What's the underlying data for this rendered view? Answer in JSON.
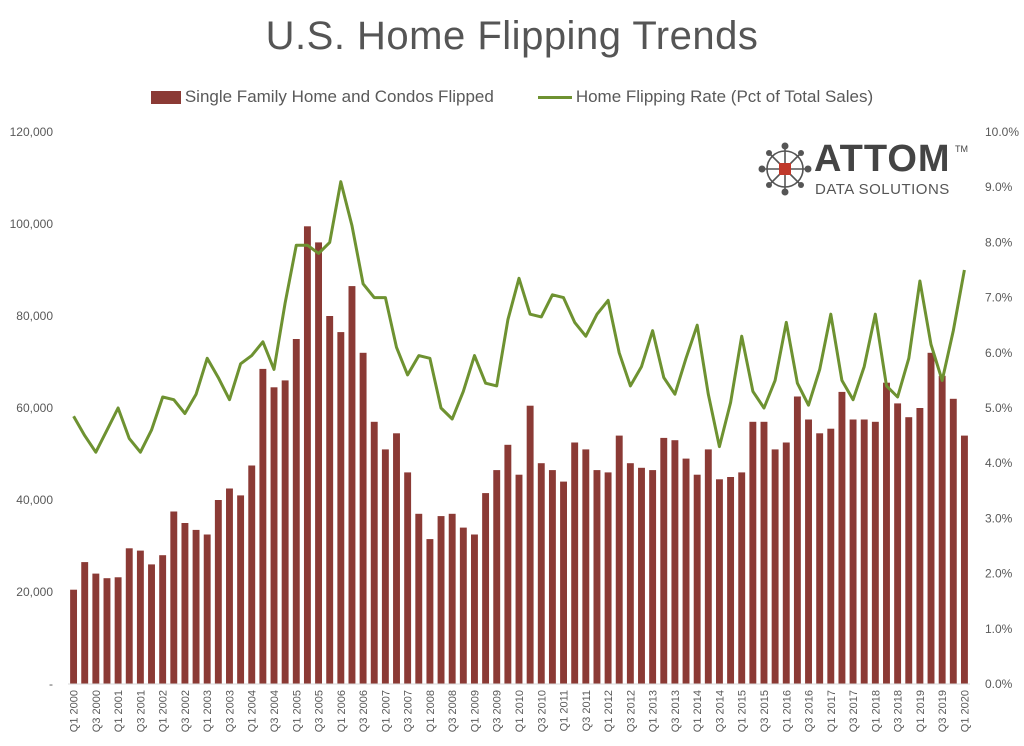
{
  "title": "U.S. Home Flipping Trends",
  "legend": {
    "bars_label": "Single Family Home and Condos Flipped",
    "line_label": "Home Flipping Rate (Pct of Total Sales)"
  },
  "logo": {
    "word": "ATTOM",
    "tm": "TM",
    "sub": "DATA SOLUTIONS"
  },
  "colors": {
    "bars": "#8B3A35",
    "line": "#6E9231",
    "axis_text": "#595959"
  },
  "chart_data": {
    "type": "bar",
    "categories": [
      "Q1 2000",
      "Q2 2000",
      "Q3 2000",
      "Q4 2000",
      "Q1 2001",
      "Q2 2001",
      "Q3 2001",
      "Q4 2001",
      "Q1 2002",
      "Q2 2002",
      "Q3 2002",
      "Q4 2002",
      "Q1 2003",
      "Q2 2003",
      "Q3 2003",
      "Q4 2003",
      "Q1 2004",
      "Q2 2004",
      "Q3 2004",
      "Q4 2004",
      "Q1 2005",
      "Q2 2005",
      "Q3 2005",
      "Q4 2005",
      "Q1 2006",
      "Q2 2006",
      "Q3 2006",
      "Q4 2006",
      "Q1 2007",
      "Q2 2007",
      "Q3 2007",
      "Q4 2007",
      "Q1 2008",
      "Q2 2008",
      "Q3 2008",
      "Q4 2008",
      "Q1 2009",
      "Q2 2009",
      "Q3 2009",
      "Q4 2009",
      "Q1 2010",
      "Q2 2010",
      "Q3 2010",
      "Q4 2010",
      "Q1 2011",
      "Q2 2011",
      "Q3 2011",
      "Q4 2011",
      "Q1 2012",
      "Q2 2012",
      "Q3 2012",
      "Q4 2012",
      "Q1 2013",
      "Q2 2013",
      "Q3 2013",
      "Q4 2013",
      "Q1 2014",
      "Q2 2014",
      "Q3 2014",
      "Q4 2014",
      "Q1 2015",
      "Q2 2015",
      "Q3 2015",
      "Q4 2015",
      "Q1 2016",
      "Q2 2016",
      "Q3 2016",
      "Q4 2016",
      "Q1 2017",
      "Q2 2017",
      "Q3 2017",
      "Q4 2017",
      "Q1 2018",
      "Q2 2018",
      "Q3 2018",
      "Q4 2018",
      "Q1 2019",
      "Q2 2019",
      "Q3 2019",
      "Q4 2019",
      "Q1 2020"
    ],
    "x_tick_labels": [
      "Q1 2000",
      "Q3 2000",
      "Q1 2001",
      "Q3 2001",
      "Q1 2002",
      "Q3 2002",
      "Q1 2003",
      "Q3 2003",
      "Q1 2004",
      "Q3 2004",
      "Q1 2005",
      "Q3 2005",
      "Q1 2006",
      "Q3 2006",
      "Q1 2007",
      "Q3 2007",
      "Q1 2008",
      "Q3 2008",
      "Q1 2009",
      "Q3 2009",
      "Q1 2010",
      "Q3 2010",
      "Q1 2011",
      "Q3 2011",
      "Q1 2012",
      "Q3 2012",
      "Q1 2013",
      "Q3 2013",
      "Q1 2014",
      "Q3 2014",
      "Q1 2015",
      "Q3 2015",
      "Q1 2016",
      "Q3 2016",
      "Q1 2017",
      "Q3 2017",
      "Q1 2018",
      "Q3 2018",
      "Q1 2019",
      "Q3 2019",
      "Q1 2020"
    ],
    "series": [
      {
        "name": "Single Family Home and Condos Flipped",
        "type": "bar",
        "axis": "left",
        "values": [
          20500,
          26500,
          24000,
          23000,
          23200,
          29500,
          29000,
          26000,
          28000,
          37500,
          35000,
          33500,
          32500,
          40000,
          42500,
          41000,
          47500,
          68500,
          64500,
          66000,
          75000,
          99500,
          96000,
          80000,
          76500,
          86500,
          72000,
          57000,
          51000,
          54500,
          46000,
          37000,
          31500,
          36500,
          37000,
          34000,
          32500,
          41500,
          46500,
          52000,
          45500,
          60500,
          48000,
          46500,
          44000,
          52500,
          51000,
          46500,
          46000,
          54000,
          48000,
          47000,
          46500,
          53500,
          53000,
          49000,
          45500,
          51000,
          44500,
          45000,
          46000,
          57000,
          57000,
          51000,
          52500,
          62500,
          57500,
          54500,
          55500,
          63500,
          57500,
          57500,
          57000,
          65500,
          61000,
          58000,
          60000,
          72000,
          67000,
          62000,
          54000
        ]
      },
      {
        "name": "Home Flipping Rate (Pct of Total Sales)",
        "type": "line",
        "axis": "right",
        "values": [
          4.85,
          4.5,
          4.2,
          4.6,
          5.0,
          4.45,
          4.2,
          4.6,
          5.2,
          5.15,
          4.9,
          5.25,
          5.9,
          5.55,
          5.15,
          5.8,
          5.95,
          6.2,
          5.7,
          6.9,
          7.95,
          7.95,
          7.8,
          8.0,
          9.1,
          8.3,
          7.25,
          7.0,
          7.0,
          6.1,
          5.6,
          5.95,
          5.9,
          5.0,
          4.8,
          5.3,
          5.95,
          5.45,
          5.4,
          6.6,
          7.35,
          6.7,
          6.65,
          7.05,
          7.0,
          6.55,
          6.3,
          6.7,
          6.95,
          6.0,
          5.4,
          5.75,
          6.4,
          5.55,
          5.25,
          5.9,
          6.5,
          5.25,
          4.3,
          5.1,
          6.3,
          5.3,
          5.0,
          5.5,
          6.55,
          5.45,
          5.05,
          5.7,
          6.7,
          5.5,
          5.15,
          5.75,
          6.7,
          5.4,
          5.2,
          5.9,
          7.3,
          6.15,
          5.5,
          6.4,
          7.5
        ]
      }
    ],
    "y_left": {
      "min": 0,
      "max": 120000,
      "ticks": [
        "-",
        "20,000",
        "40,000",
        "60,000",
        "80,000",
        "100,000",
        "120,000"
      ]
    },
    "y_right": {
      "min": 0,
      "max": 10,
      "ticks": [
        "0.0%",
        "1.0%",
        "2.0%",
        "3.0%",
        "4.0%",
        "5.0%",
        "6.0%",
        "7.0%",
        "8.0%",
        "9.0%",
        "10.0%"
      ]
    },
    "legend_position": "top"
  }
}
